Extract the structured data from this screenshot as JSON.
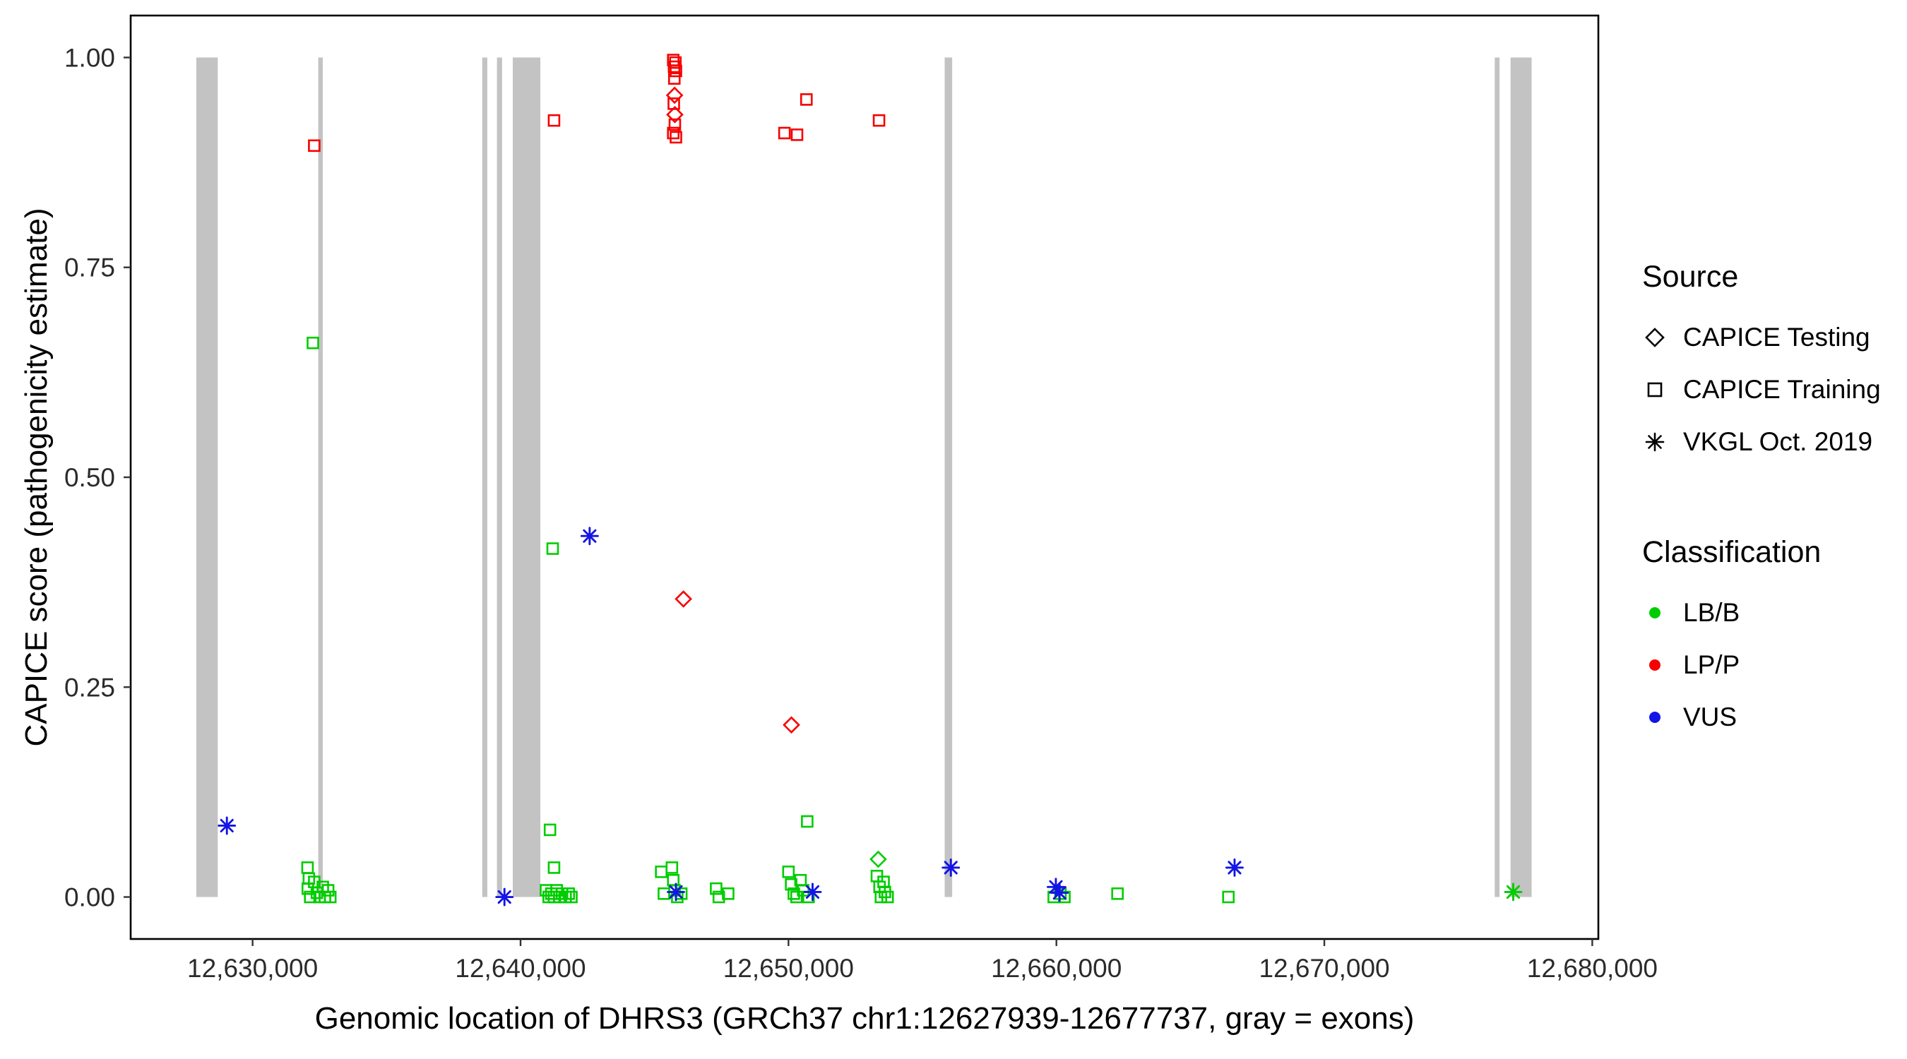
{
  "colors": {
    "exon": "#c3c3c3",
    "panel_border": "#000000",
    "axis_text": "#2b2b2b",
    "lbb_green": "#00cd00",
    "lpp_red": "#f70000",
    "vus_blue": "#1414e6"
  },
  "legend": {
    "source": {
      "title": "Source",
      "items": [
        {
          "label": "CAPICE Testing",
          "shape": "diamond"
        },
        {
          "label": "CAPICE Training",
          "shape": "square"
        },
        {
          "label": "VKGL Oct. 2019",
          "shape": "asterisk"
        }
      ]
    },
    "classification": {
      "title": "Classification",
      "items": [
        {
          "label": "LB/B",
          "color": "#00cd00"
        },
        {
          "label": "LP/P",
          "color": "#f70000"
        },
        {
          "label": "VUS",
          "color": "#1414e6"
        }
      ]
    }
  },
  "chart_data": {
    "type": "scatter",
    "title": "",
    "xlabel": "Genomic location of DHRS3 (GRCh37 chr1:12627939-12677737, gray = exons)",
    "ylabel": "CAPICE score (pathogenicity estimate)",
    "xlim": [
      12627939,
      12677737
    ],
    "ylim": [
      0,
      1
    ],
    "grid": false,
    "legend_position": "right",
    "x_ticks": [
      {
        "value": 12630000,
        "label": "12,630,000"
      },
      {
        "value": 12640000,
        "label": "12,640,000"
      },
      {
        "value": 12650000,
        "label": "12,650,000"
      },
      {
        "value": 12660000,
        "label": "12,660,000"
      },
      {
        "value": 12670000,
        "label": "12,670,000"
      },
      {
        "value": 12680000,
        "label": "12,680,000"
      }
    ],
    "y_ticks": [
      {
        "value": 0.0,
        "label": "0.00"
      },
      {
        "value": 0.25,
        "label": "0.25"
      },
      {
        "value": 0.5,
        "label": "0.50"
      },
      {
        "value": 0.75,
        "label": "0.75"
      },
      {
        "value": 1.0,
        "label": "1.00"
      }
    ],
    "exons_note": "gray rectangles spanning y=0 to y=1 marking exon genomic ranges",
    "exons": [
      [
        12627900,
        12628700
      ],
      [
        12632450,
        12632620
      ],
      [
        12638570,
        12638760
      ],
      [
        12639120,
        12639310
      ],
      [
        12639710,
        12640740
      ],
      [
        12655830,
        12656110
      ],
      [
        12676360,
        12676540
      ],
      [
        12676950,
        12677737
      ]
    ],
    "shape_legend": {
      "diamond": "CAPICE Testing",
      "square": "CAPICE Training",
      "asterisk": "VKGL Oct. 2019"
    },
    "series": [
      {
        "name": "LP/P",
        "color": "#f70000",
        "points": [
          {
            "x": 12632300,
            "y": 0.895,
            "shape": "square"
          },
          {
            "x": 12641250,
            "y": 0.925,
            "shape": "square"
          },
          {
            "x": 12645700,
            "y": 0.997,
            "shape": "square"
          },
          {
            "x": 12645780,
            "y": 0.994,
            "shape": "square"
          },
          {
            "x": 12645730,
            "y": 0.989,
            "shape": "square"
          },
          {
            "x": 12645800,
            "y": 0.984,
            "shape": "square"
          },
          {
            "x": 12645740,
            "y": 0.975,
            "shape": "square"
          },
          {
            "x": 12645720,
            "y": 0.945,
            "shape": "square"
          },
          {
            "x": 12645760,
            "y": 0.92,
            "shape": "square"
          },
          {
            "x": 12645700,
            "y": 0.91,
            "shape": "square"
          },
          {
            "x": 12645800,
            "y": 0.905,
            "shape": "square"
          },
          {
            "x": 12649850,
            "y": 0.91,
            "shape": "square"
          },
          {
            "x": 12650320,
            "y": 0.908,
            "shape": "square"
          },
          {
            "x": 12650670,
            "y": 0.95,
            "shape": "square"
          },
          {
            "x": 12653380,
            "y": 0.925,
            "shape": "square"
          },
          {
            "x": 12645750,
            "y": 0.955,
            "shape": "diamond"
          },
          {
            "x": 12645760,
            "y": 0.932,
            "shape": "diamond"
          },
          {
            "x": 12646080,
            "y": 0.355,
            "shape": "diamond"
          },
          {
            "x": 12650110,
            "y": 0.205,
            "shape": "diamond"
          }
        ]
      },
      {
        "name": "LB/B",
        "color": "#00cd00",
        "points": [
          {
            "x": 12632250,
            "y": 0.66,
            "shape": "square"
          },
          {
            "x": 12632050,
            "y": 0.035,
            "shape": "square"
          },
          {
            "x": 12632100,
            "y": 0.022,
            "shape": "square"
          },
          {
            "x": 12632060,
            "y": 0.01,
            "shape": "square"
          },
          {
            "x": 12632150,
            "y": 0.0,
            "shape": "square"
          },
          {
            "x": 12632300,
            "y": 0.018,
            "shape": "square"
          },
          {
            "x": 12632400,
            "y": 0.005,
            "shape": "square"
          },
          {
            "x": 12632500,
            "y": 0.0,
            "shape": "square"
          },
          {
            "x": 12632620,
            "y": 0.012,
            "shape": "square"
          },
          {
            "x": 12632700,
            "y": 0.0,
            "shape": "square"
          },
          {
            "x": 12632820,
            "y": 0.008,
            "shape": "square"
          },
          {
            "x": 12632900,
            "y": 0.0,
            "shape": "square"
          },
          {
            "x": 12641200,
            "y": 0.415,
            "shape": "square"
          },
          {
            "x": 12641100,
            "y": 0.08,
            "shape": "square"
          },
          {
            "x": 12641250,
            "y": 0.035,
            "shape": "square"
          },
          {
            "x": 12640950,
            "y": 0.008,
            "shape": "square"
          },
          {
            "x": 12641050,
            "y": 0.0,
            "shape": "square"
          },
          {
            "x": 12641150,
            "y": 0.004,
            "shape": "square"
          },
          {
            "x": 12641250,
            "y": 0.0,
            "shape": "square"
          },
          {
            "x": 12641350,
            "y": 0.008,
            "shape": "square"
          },
          {
            "x": 12641450,
            "y": 0.0,
            "shape": "square"
          },
          {
            "x": 12641550,
            "y": 0.004,
            "shape": "square"
          },
          {
            "x": 12641680,
            "y": 0.0,
            "shape": "square"
          },
          {
            "x": 12641800,
            "y": 0.004,
            "shape": "square"
          },
          {
            "x": 12641900,
            "y": 0.0,
            "shape": "square"
          },
          {
            "x": 12645250,
            "y": 0.03,
            "shape": "square"
          },
          {
            "x": 12645350,
            "y": 0.004,
            "shape": "square"
          },
          {
            "x": 12645650,
            "y": 0.035,
            "shape": "square"
          },
          {
            "x": 12645700,
            "y": 0.02,
            "shape": "square"
          },
          {
            "x": 12645750,
            "y": 0.008,
            "shape": "square"
          },
          {
            "x": 12645850,
            "y": 0.0,
            "shape": "square"
          },
          {
            "x": 12646000,
            "y": 0.004,
            "shape": "square"
          },
          {
            "x": 12647300,
            "y": 0.01,
            "shape": "square"
          },
          {
            "x": 12647400,
            "y": 0.0,
            "shape": "square"
          },
          {
            "x": 12647750,
            "y": 0.004,
            "shape": "square"
          },
          {
            "x": 12650000,
            "y": 0.03,
            "shape": "square"
          },
          {
            "x": 12650100,
            "y": 0.015,
            "shape": "square"
          },
          {
            "x": 12650200,
            "y": 0.004,
            "shape": "square"
          },
          {
            "x": 12650300,
            "y": 0.0,
            "shape": "square"
          },
          {
            "x": 12650450,
            "y": 0.02,
            "shape": "square"
          },
          {
            "x": 12650550,
            "y": 0.008,
            "shape": "square"
          },
          {
            "x": 12650700,
            "y": 0.09,
            "shape": "square"
          },
          {
            "x": 12650750,
            "y": 0.0,
            "shape": "square"
          },
          {
            "x": 12653300,
            "y": 0.025,
            "shape": "square"
          },
          {
            "x": 12653400,
            "y": 0.012,
            "shape": "square"
          },
          {
            "x": 12653450,
            "y": 0.0,
            "shape": "square"
          },
          {
            "x": 12653550,
            "y": 0.018,
            "shape": "square"
          },
          {
            "x": 12653600,
            "y": 0.006,
            "shape": "square"
          },
          {
            "x": 12653700,
            "y": 0.0,
            "shape": "square"
          },
          {
            "x": 12659900,
            "y": 0.0,
            "shape": "square"
          },
          {
            "x": 12660150,
            "y": 0.004,
            "shape": "square"
          },
          {
            "x": 12660300,
            "y": 0.0,
            "shape": "square"
          },
          {
            "x": 12662280,
            "y": 0.004,
            "shape": "square"
          },
          {
            "x": 12666420,
            "y": 0.0,
            "shape": "square"
          },
          {
            "x": 12653350,
            "y": 0.045,
            "shape": "diamond"
          },
          {
            "x": 12677050,
            "y": 0.006,
            "shape": "asterisk"
          }
        ]
      },
      {
        "name": "VUS",
        "color": "#1414e6",
        "points": [
          {
            "x": 12629040,
            "y": 0.085,
            "shape": "asterisk"
          },
          {
            "x": 12639400,
            "y": 0.0,
            "shape": "asterisk"
          },
          {
            "x": 12642580,
            "y": 0.43,
            "shape": "asterisk"
          },
          {
            "x": 12645800,
            "y": 0.006,
            "shape": "asterisk"
          },
          {
            "x": 12650900,
            "y": 0.006,
            "shape": "asterisk"
          },
          {
            "x": 12656060,
            "y": 0.035,
            "shape": "asterisk"
          },
          {
            "x": 12659980,
            "y": 0.012,
            "shape": "asterisk"
          },
          {
            "x": 12660120,
            "y": 0.005,
            "shape": "asterisk"
          },
          {
            "x": 12666650,
            "y": 0.035,
            "shape": "asterisk"
          }
        ]
      }
    ]
  }
}
